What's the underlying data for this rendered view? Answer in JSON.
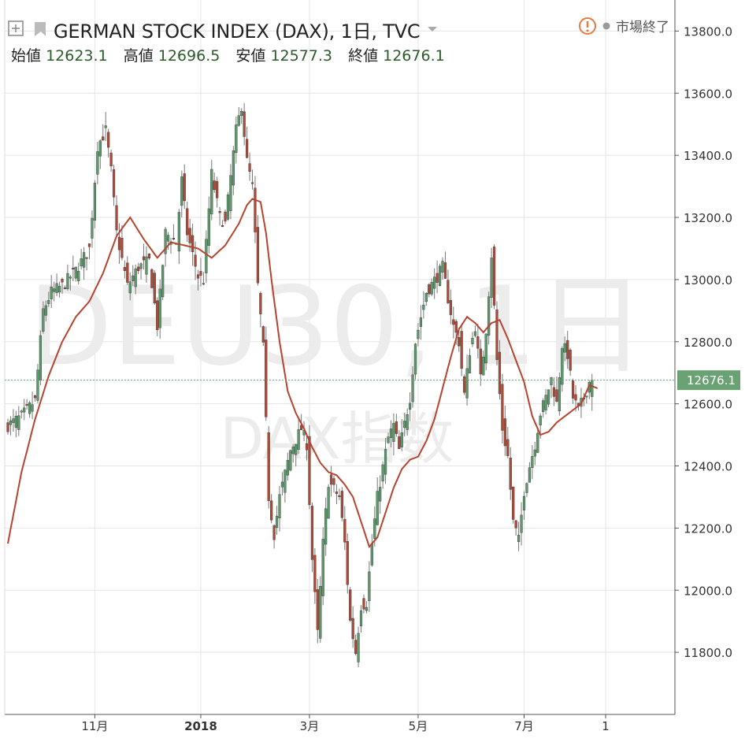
{
  "header": {
    "symbol_title": "GERMAN STOCK INDEX (DAX), 1日, TVC",
    "market_status": "市場終了",
    "ohlc": [
      {
        "label": "始値",
        "value": "12623.1"
      },
      {
        "label": "高値",
        "value": "12696.5"
      },
      {
        "label": "安値",
        "value": "12577.3"
      },
      {
        "label": "終値",
        "value": "12676.1"
      }
    ]
  },
  "watermark": {
    "line1": "DEU30, 1日",
    "line2": "DAX指数"
  },
  "last_price_label": "12676.1",
  "colors": {
    "up": "#5b9b6b",
    "down": "#b04a37",
    "ma": "#b5432e",
    "grid": "#e5e5e5",
    "last_tag": "#6aa274"
  },
  "chart_data": {
    "type": "candlestick",
    "ylim": [
      11600,
      13900
    ],
    "y_ticks": [
      "11800.0",
      "12000.0",
      "12200.0",
      "12400.0",
      "12600.0",
      "12800.0",
      "13000.0",
      "13200.0",
      "13400.0",
      "13600.0",
      "13800.0"
    ],
    "x_ticks": [
      {
        "label": "11月",
        "index": 32
      },
      {
        "label": "2018",
        "index": 71,
        "bold": true
      },
      {
        "label": "3月",
        "index": 111
      },
      {
        "label": "5月",
        "index": 151
      },
      {
        "label": "7月",
        "index": 190
      },
      {
        "label": "1",
        "index": 220
      }
    ],
    "series": [
      {
        "name": "DAX",
        "type": "candlestick",
        "anchors": [
          [
            0,
            12530
          ],
          [
            5,
            12560
          ],
          [
            10,
            12610
          ],
          [
            13,
            12900
          ],
          [
            16,
            12960
          ],
          [
            20,
            12980
          ],
          [
            25,
            13030
          ],
          [
            30,
            13100
          ],
          [
            33,
            13430
          ],
          [
            36,
            13480
          ],
          [
            38,
            13350
          ],
          [
            40,
            13150
          ],
          [
            44,
            12980
          ],
          [
            48,
            13040
          ],
          [
            52,
            13060
          ],
          [
            55,
            12850
          ],
          [
            58,
            13150
          ],
          [
            62,
            13120
          ],
          [
            64,
            13320
          ],
          [
            66,
            13150
          ],
          [
            70,
            13010
          ],
          [
            72,
            13000
          ],
          [
            75,
            13340
          ],
          [
            78,
            13200
          ],
          [
            80,
            13180
          ],
          [
            84,
            13480
          ],
          [
            86,
            13560
          ],
          [
            88,
            13380
          ],
          [
            90,
            13300
          ],
          [
            92,
            12980
          ],
          [
            94,
            12780
          ],
          [
            96,
            12300
          ],
          [
            98,
            12180
          ],
          [
            100,
            12300
          ],
          [
            104,
            12450
          ],
          [
            108,
            12520
          ],
          [
            110,
            12470
          ],
          [
            112,
            12100
          ],
          [
            114,
            11860
          ],
          [
            116,
            12150
          ],
          [
            118,
            12350
          ],
          [
            122,
            12300
          ],
          [
            124,
            12150
          ],
          [
            126,
            11900
          ],
          [
            128,
            11800
          ],
          [
            130,
            11950
          ],
          [
            132,
            11960
          ],
          [
            134,
            12150
          ],
          [
            136,
            12300
          ],
          [
            140,
            12490
          ],
          [
            142,
            12530
          ],
          [
            144,
            12450
          ],
          [
            148,
            12620
          ],
          [
            150,
            12800
          ],
          [
            154,
            12960
          ],
          [
            158,
            13010
          ],
          [
            160,
            13040
          ],
          [
            162,
            12940
          ],
          [
            164,
            12850
          ],
          [
            166,
            12800
          ],
          [
            168,
            12630
          ],
          [
            170,
            12770
          ],
          [
            172,
            12850
          ],
          [
            174,
            12680
          ],
          [
            176,
            12840
          ],
          [
            178,
            13080
          ],
          [
            180,
            12740
          ],
          [
            182,
            12520
          ],
          [
            184,
            12430
          ],
          [
            186,
            12220
          ],
          [
            188,
            12160
          ],
          [
            190,
            12320
          ],
          [
            192,
            12400
          ],
          [
            194,
            12470
          ],
          [
            196,
            12570
          ],
          [
            198,
            12620
          ],
          [
            200,
            12680
          ],
          [
            202,
            12600
          ],
          [
            204,
            12790
          ],
          [
            206,
            12760
          ],
          [
            208,
            12620
          ],
          [
            210,
            12580
          ],
          [
            212,
            12620
          ],
          [
            214,
            12670
          ],
          [
            215,
            12676
          ]
        ],
        "final": {
          "open": 12623.1,
          "high": 12696.5,
          "low": 12577.3,
          "close": 12676.1
        }
      },
      {
        "name": "MA",
        "type": "line",
        "anchors": [
          [
            0,
            12150
          ],
          [
            5,
            12380
          ],
          [
            10,
            12550
          ],
          [
            15,
            12690
          ],
          [
            20,
            12800
          ],
          [
            25,
            12880
          ],
          [
            30,
            12930
          ],
          [
            35,
            13020
          ],
          [
            40,
            13140
          ],
          [
            45,
            13200
          ],
          [
            50,
            13130
          ],
          [
            55,
            13070
          ],
          [
            60,
            13120
          ],
          [
            65,
            13110
          ],
          [
            70,
            13100
          ],
          [
            75,
            13070
          ],
          [
            80,
            13110
          ],
          [
            85,
            13180
          ],
          [
            88,
            13240
          ],
          [
            90,
            13260
          ],
          [
            93,
            13250
          ],
          [
            95,
            13150
          ],
          [
            97,
            13000
          ],
          [
            100,
            12800
          ],
          [
            103,
            12640
          ],
          [
            106,
            12570
          ],
          [
            109,
            12520
          ],
          [
            112,
            12460
          ],
          [
            115,
            12410
          ],
          [
            118,
            12380
          ],
          [
            121,
            12370
          ],
          [
            124,
            12340
          ],
          [
            127,
            12300
          ],
          [
            130,
            12220
          ],
          [
            133,
            12140
          ],
          [
            136,
            12170
          ],
          [
            139,
            12250
          ],
          [
            142,
            12330
          ],
          [
            145,
            12390
          ],
          [
            148,
            12420
          ],
          [
            151,
            12430
          ],
          [
            154,
            12480
          ],
          [
            157,
            12550
          ],
          [
            160,
            12650
          ],
          [
            163,
            12750
          ],
          [
            166,
            12840
          ],
          [
            169,
            12880
          ],
          [
            172,
            12860
          ],
          [
            175,
            12830
          ],
          [
            178,
            12860
          ],
          [
            181,
            12870
          ],
          [
            184,
            12810
          ],
          [
            187,
            12740
          ],
          [
            190,
            12670
          ],
          [
            193,
            12560
          ],
          [
            196,
            12500
          ],
          [
            199,
            12510
          ],
          [
            202,
            12540
          ],
          [
            205,
            12560
          ],
          [
            208,
            12580
          ],
          [
            211,
            12600
          ],
          [
            214,
            12660
          ],
          [
            217,
            12650
          ]
        ]
      }
    ]
  }
}
